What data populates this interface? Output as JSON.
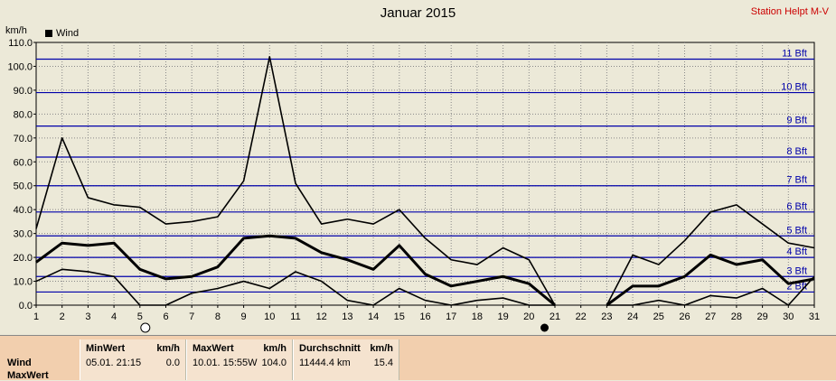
{
  "header": {
    "title": "Januar 2015",
    "station": "Station Helpt M-V",
    "unit_label": "km/h"
  },
  "legend": {
    "label": "Wind",
    "color": "#000000"
  },
  "chart_data": {
    "type": "line",
    "title": "Januar 2015",
    "ylabel": "km/h",
    "xlabel": "",
    "x": [
      1,
      2,
      3,
      4,
      5,
      6,
      7,
      8,
      9,
      10,
      11,
      12,
      13,
      14,
      15,
      16,
      17,
      18,
      19,
      20,
      21,
      22,
      23,
      24,
      25,
      26,
      27,
      28,
      29,
      30,
      31
    ],
    "ylim": [
      0,
      110
    ],
    "xlim": [
      1,
      31
    ],
    "yticks": [
      "0.0",
      "10.0",
      "20.0",
      "30.0",
      "40.0",
      "50.0",
      "60.0",
      "70.0",
      "80.0",
      "90.0",
      "100.0",
      "110.0"
    ],
    "xticks": [
      "1",
      "2",
      "3",
      "4",
      "5",
      "6",
      "7",
      "8",
      "9",
      "10",
      "11",
      "12",
      "13",
      "14",
      "15",
      "16",
      "17",
      "18",
      "19",
      "20",
      "21",
      "22",
      "23",
      "24",
      "25",
      "26",
      "27",
      "28",
      "29",
      "30",
      "31"
    ],
    "grid": true,
    "beaufort_lines": [
      {
        "label": "2 Bft",
        "value": 5.5
      },
      {
        "label": "3 Bft",
        "value": 12
      },
      {
        "label": "4 Bft",
        "value": 20
      },
      {
        "label": "5 Bft",
        "value": 29
      },
      {
        "label": "6 Bft",
        "value": 39
      },
      {
        "label": "7 Bft",
        "value": 50
      },
      {
        "label": "8 Bft",
        "value": 62
      },
      {
        "label": "9 Bft",
        "value": 75
      },
      {
        "label": "10 Bft",
        "value": 89
      },
      {
        "label": "11 Bft",
        "value": 103
      }
    ],
    "series": [
      {
        "role": "max",
        "color": "#000000",
        "values": [
          32,
          70,
          45,
          42,
          41,
          34,
          35,
          37,
          52,
          104,
          51,
          34,
          36,
          34,
          40,
          28,
          19,
          17,
          24,
          19,
          0,
          null,
          0,
          21,
          17,
          27,
          39,
          42,
          34,
          26,
          24
        ]
      },
      {
        "role": "avg",
        "color": "#000000",
        "values": [
          18,
          26,
          25,
          26,
          15,
          11,
          12,
          16,
          28,
          29,
          28,
          22,
          19,
          15,
          25,
          13,
          8,
          10,
          12,
          9,
          0,
          null,
          0,
          8,
          8,
          12,
          21,
          17,
          19,
          9,
          11
        ]
      },
      {
        "role": "min",
        "color": "#000000",
        "values": [
          10,
          15,
          14,
          12,
          0,
          0,
          5,
          7,
          10,
          7,
          14,
          10,
          2,
          0,
          7,
          2,
          0,
          2,
          3,
          0,
          0,
          null,
          0,
          0,
          2,
          0,
          4,
          3,
          7,
          0,
          12
        ]
      }
    ],
    "moon_markers": [
      {
        "day": 5,
        "phase": "full"
      },
      {
        "day": 20.6,
        "phase": "new"
      }
    ]
  },
  "stats_table": {
    "rows": [
      "Wind",
      "MaxWert"
    ],
    "columns": [
      {
        "header": "MinWert",
        "unit": "km/h",
        "value_text": "05.01.  21:15",
        "value": "0.0"
      },
      {
        "header": "MaxWert",
        "unit": "km/h",
        "value_text": "10.01.  15:55W",
        "value": "104.0"
      },
      {
        "header": "Durchschnitt",
        "unit": "km/h",
        "value_text": "11444.4 km",
        "value": "15.4"
      }
    ]
  }
}
